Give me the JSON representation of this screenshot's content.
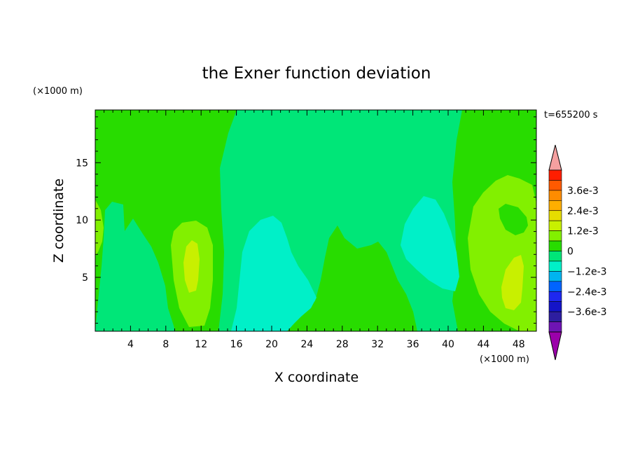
{
  "chart_data": {
    "type": "heatmap",
    "title": "the Exner function deviation",
    "xlabel": "X coordinate",
    "ylabel": "Z coordinate",
    "x_unit": "(×1000 m)",
    "y_unit": "(×1000 m)",
    "time_label": "t=655200 s",
    "xlim": [
      0,
      50
    ],
    "ylim": [
      0.3,
      19.6
    ],
    "x_ticks": [
      4,
      8,
      12,
      16,
      20,
      24,
      28,
      32,
      36,
      40,
      44,
      48
    ],
    "y_ticks": [
      5,
      10,
      15
    ],
    "colorbar": {
      "labels": [
        "3.6e-3",
        "2.4e-3",
        "1.2e-3",
        "0",
        "-1.2e-3",
        "-2.4e-3",
        "-3.6e-3"
      ],
      "label_values": [
        0.0036,
        0.0024,
        0.0012,
        0,
        -0.0012,
        -0.0024,
        -0.0036
      ],
      "levels_top_to_bottom": [
        0.0042,
        0.0036,
        0.003,
        0.0024,
        0.0018,
        0.0012,
        0.0006,
        0,
        -0.0006,
        -0.0012,
        -0.0018,
        -0.0024,
        -0.003,
        -0.0036,
        -0.0042
      ],
      "colors_top_to_bottom": [
        "#ff1e00",
        "#ff5a00",
        "#ff8c00",
        "#ffaf00",
        "#e6dc00",
        "#c8f000",
        "#82f000",
        "#28dc00",
        "#00e678",
        "#00f0c8",
        "#00b4f0",
        "#0064ff",
        "#1e28f0",
        "#1414c8",
        "#2d1ea0",
        "#6e14b4"
      ],
      "over_color": "#f5a0a0",
      "under_color": "#9b00aa"
    },
    "regions": [
      {
        "name": "background",
        "value": 0.0003,
        "color": "#28dc00"
      },
      {
        "name": "central-band",
        "value": -0.0003,
        "color": "#00e678"
      },
      {
        "name": "left-low-region",
        "value": -0.0003,
        "color": "#00e678"
      },
      {
        "name": "central-low-cell",
        "value": -0.0009,
        "color": "#00f0c8"
      },
      {
        "name": "right-low-cell",
        "value": -0.0009,
        "color": "#00f0c8"
      },
      {
        "name": "left-high-cell",
        "value": 0.0009,
        "color": "#82f000"
      },
      {
        "name": "left-high-core",
        "value": 0.0015,
        "color": "#c8f000"
      },
      {
        "name": "right-high-cell",
        "value": 0.0009,
        "color": "#82f000"
      },
      {
        "name": "right-high-core",
        "value": 0.0015,
        "color": "#c8f000"
      },
      {
        "name": "right-inner-pocket",
        "value": 0.0003,
        "color": "#28dc00"
      },
      {
        "name": "left-edge-cell",
        "value": 0.0009,
        "color": "#82f000"
      },
      {
        "name": "central-high-region",
        "value": 0.0003,
        "color": "#28dc00"
      }
    ]
  }
}
